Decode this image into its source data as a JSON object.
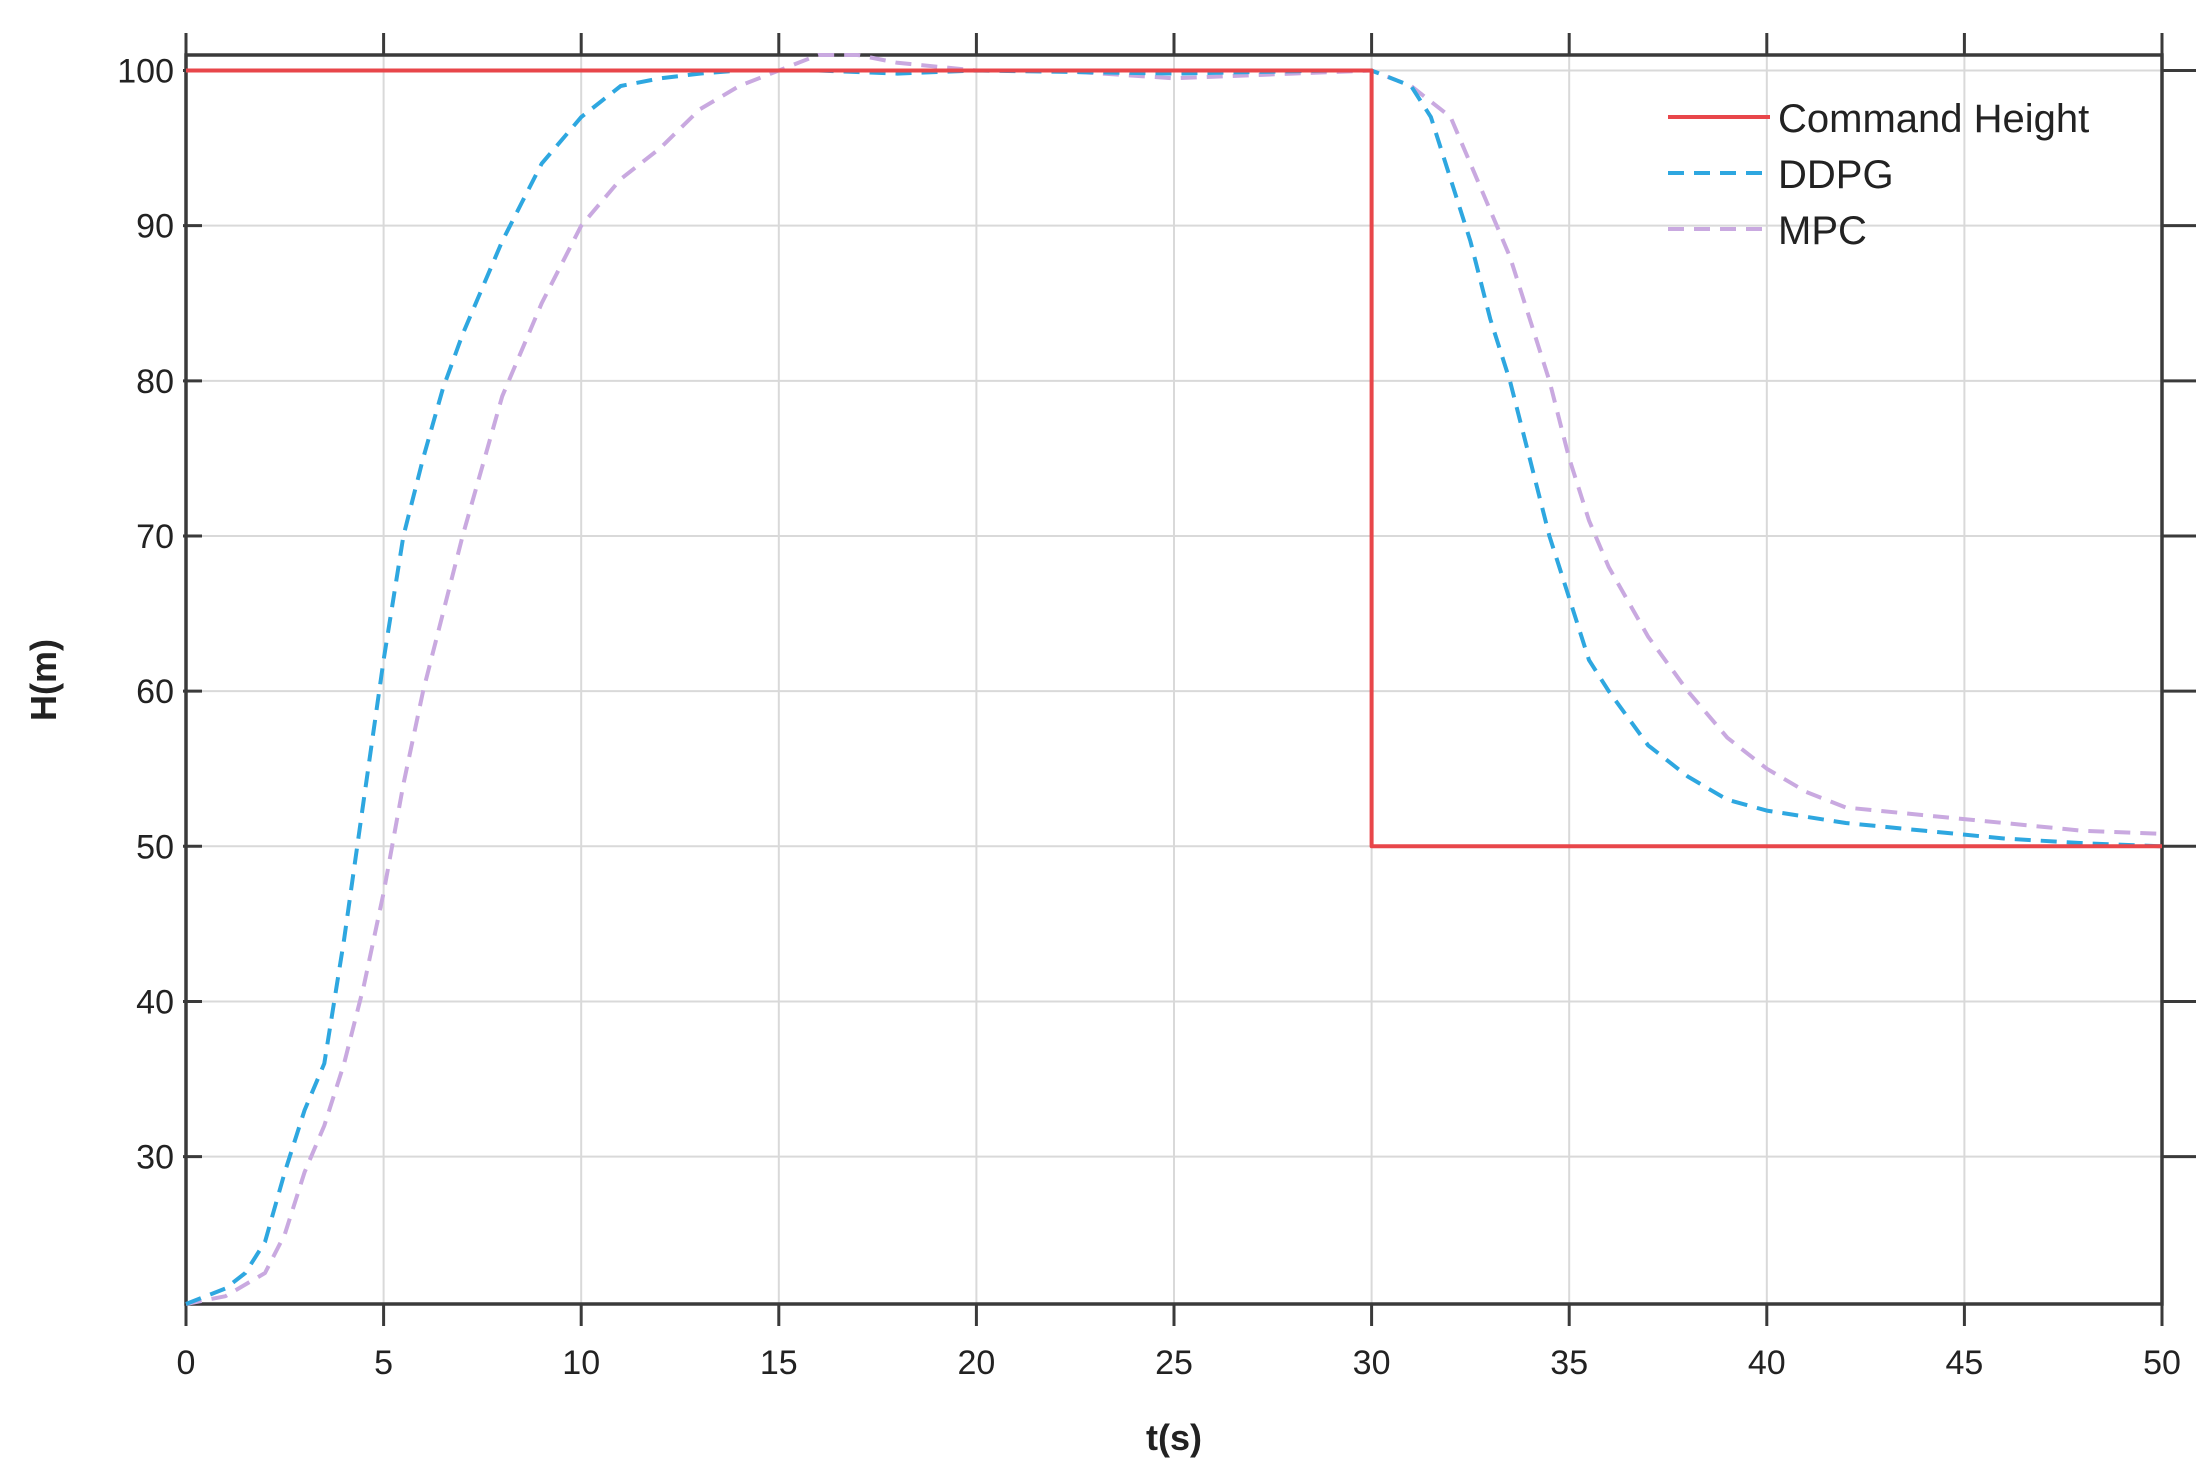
{
  "chart_data": {
    "type": "line",
    "title": "",
    "xlabel": "t(s)",
    "ylabel": "H(m)",
    "xlim": [
      0,
      50
    ],
    "ylim": [
      20.5,
      101
    ],
    "xticks": [
      0,
      5,
      10,
      15,
      20,
      25,
      30,
      35,
      40,
      45,
      50
    ],
    "yticks": [
      30,
      40,
      50,
      60,
      70,
      80,
      90,
      100
    ],
    "grid": true,
    "legend_position": "top-right",
    "series": [
      {
        "name": "Command Height",
        "color": "#e8464a",
        "style": "solid",
        "x": [
          0,
          30,
          30,
          50
        ],
        "y": [
          100,
          100,
          50,
          50
        ]
      },
      {
        "name": "DDPG",
        "color": "#2ea7e0",
        "style": "dashed",
        "x": [
          0,
          0.5,
          1,
          1.5,
          2,
          2.5,
          3,
          3.5,
          4,
          4.5,
          5,
          5.5,
          6,
          6.5,
          7,
          7.5,
          8,
          8.5,
          9,
          10,
          11,
          12,
          13,
          14,
          15,
          16,
          18,
          20,
          25,
          29,
          30,
          31,
          31.5,
          32,
          32.5,
          33,
          33.5,
          34,
          34.5,
          35,
          35.5,
          36,
          37,
          38,
          39,
          40,
          42,
          44,
          46,
          48,
          50
        ],
        "y": [
          20.5,
          21,
          21.5,
          22.5,
          24.5,
          29,
          33,
          36,
          44,
          53,
          62,
          70,
          75,
          79.5,
          83,
          86,
          89,
          91.5,
          94,
          97,
          99,
          99.5,
          99.8,
          100,
          100,
          100,
          99.8,
          100,
          99.8,
          100,
          100,
          99,
          97,
          93,
          89,
          84,
          80,
          75,
          70,
          66,
          62,
          60,
          56.5,
          54.5,
          53,
          52.3,
          51.5,
          51,
          50.5,
          50.2,
          50
        ]
      },
      {
        "name": "MPC",
        "color": "#c9a9e0",
        "style": "dashed",
        "x": [
          0,
          1,
          2,
          2.5,
          3,
          3.5,
          4,
          4.5,
          5,
          5.5,
          6,
          7,
          8,
          9,
          10,
          11,
          12,
          13,
          14,
          15,
          16,
          17,
          18,
          20,
          22,
          25,
          28,
          30,
          31,
          32,
          32.5,
          33,
          33.5,
          34,
          34.5,
          35,
          35.5,
          36,
          37,
          38,
          39,
          40,
          41,
          42,
          44,
          46,
          48,
          50
        ],
        "y": [
          20.5,
          21,
          22.5,
          25,
          29,
          32,
          36,
          41,
          47,
          54,
          60,
          70,
          79,
          85,
          90,
          93,
          95,
          97.5,
          99,
          100,
          101,
          101,
          100.5,
          100,
          100,
          99.5,
          99.8,
          100,
          99,
          97,
          94,
          91,
          88,
          84,
          80,
          75,
          71,
          68,
          63.5,
          60,
          57,
          55,
          53.5,
          52.5,
          52,
          51.5,
          51,
          50.8
        ]
      }
    ]
  }
}
